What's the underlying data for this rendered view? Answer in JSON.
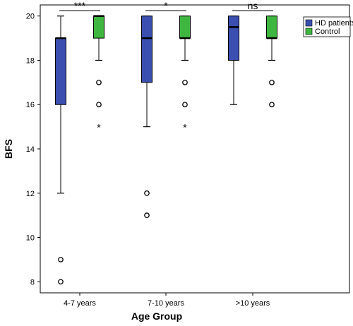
{
  "chart_data": {
    "type": "box",
    "xlabel": "Age Group",
    "ylabel": "BFS",
    "categories": [
      "4-7 years",
      "7-10 years",
      ">10 years"
    ],
    "ylim": [
      7.5,
      20.5
    ],
    "yticks": [
      8,
      10,
      12,
      14,
      16,
      18,
      20
    ],
    "grid": false,
    "legend_position": "top-right",
    "series": [
      {
        "name": "HD patients",
        "color": "#3a4fb0",
        "boxes": [
          {
            "whisker_low": 12,
            "q1": 16,
            "median": 19,
            "q3": 19,
            "whisker_high": 20,
            "outliers": [
              9,
              8
            ],
            "extremes": []
          },
          {
            "whisker_low": 15,
            "q1": 17,
            "median": 19,
            "q3": 20,
            "whisker_high": 20,
            "outliers": [
              12,
              11
            ],
            "extremes": []
          },
          {
            "whisker_low": 16,
            "q1": 18,
            "median": 19.5,
            "q3": 20,
            "whisker_high": 20,
            "outliers": [],
            "extremes": []
          }
        ]
      },
      {
        "name": "Control",
        "color": "#3fb63f",
        "boxes": [
          {
            "whisker_low": 18,
            "q1": 19,
            "median": 20,
            "q3": 20,
            "whisker_high": 20,
            "outliers": [
              17,
              16
            ],
            "extremes": [
              15
            ]
          },
          {
            "whisker_low": 18,
            "q1": 19,
            "median": 19,
            "q3": 20,
            "whisker_high": 20,
            "outliers": [
              17,
              16
            ],
            "extremes": [
              15
            ]
          },
          {
            "whisker_low": 18,
            "q1": 19,
            "median": 19,
            "q3": 20,
            "whisker_high": 20,
            "outliers": [
              17,
              16
            ],
            "extremes": []
          }
        ]
      }
    ],
    "significance": [
      "***",
      "*",
      "ns"
    ]
  }
}
